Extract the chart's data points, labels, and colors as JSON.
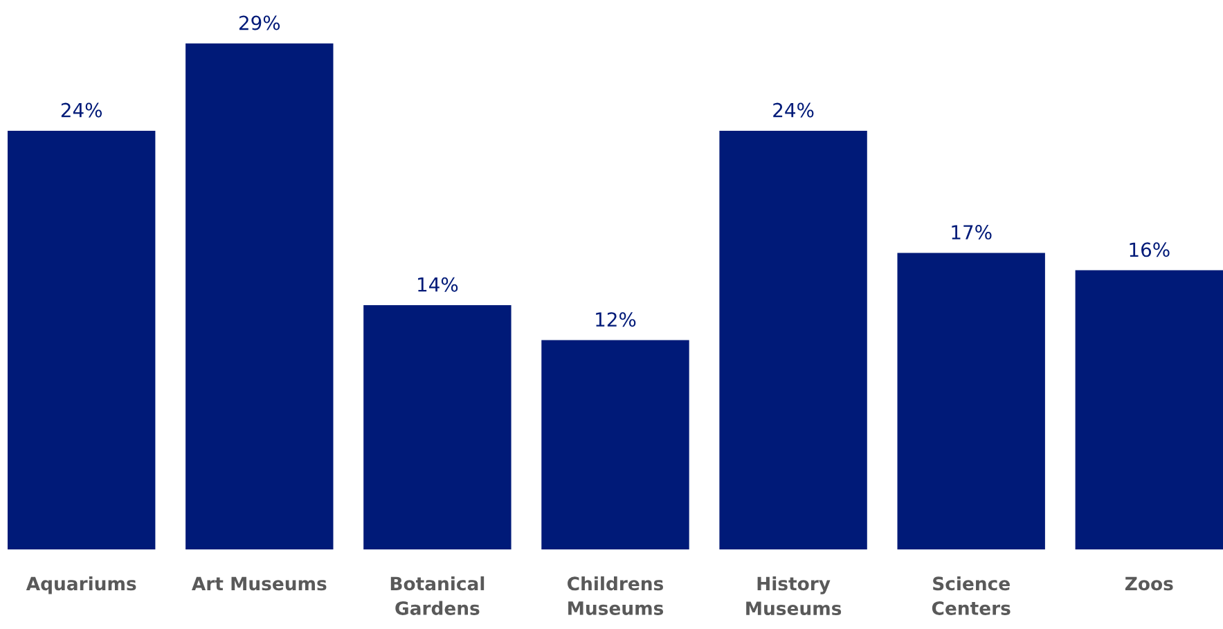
{
  "chart_data": {
    "type": "bar",
    "categories": [
      "Aquariums",
      "Art Museums",
      "Botanical Gardens",
      "Childrens Museums",
      "History Museums",
      "Science Centers",
      "Zoos"
    ],
    "values": [
      24,
      29,
      14,
      12,
      24,
      17,
      16
    ],
    "value_labels": [
      "24%",
      "29%",
      "14%",
      "12%",
      "24%",
      "17%",
      "16%"
    ],
    "color": "#001a78",
    "grid": false,
    "legend": false
  }
}
